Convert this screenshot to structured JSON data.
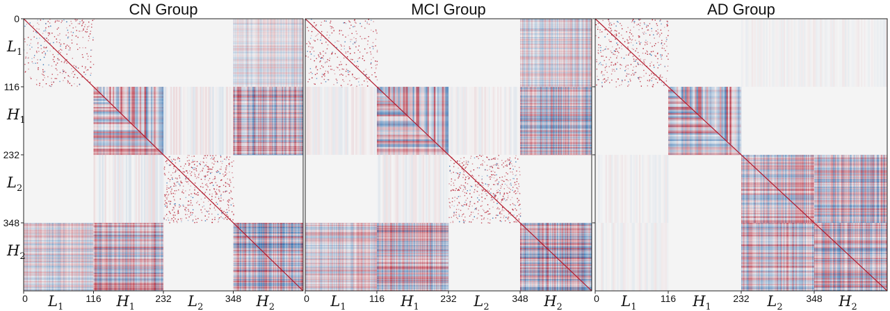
{
  "chart_data": [
    {
      "type": "heatmap",
      "title": "CN Group",
      "tick_positions": [
        0,
        116,
        232,
        348
      ],
      "tick_labels": [
        "0",
        "116",
        "232",
        "348"
      ],
      "block_labels": [
        {
          "letter": "L",
          "sub": "1"
        },
        {
          "letter": "H",
          "sub": "1"
        },
        {
          "letter": "L",
          "sub": "2"
        },
        {
          "letter": "H",
          "sub": "2"
        }
      ],
      "size": 464,
      "blocks": [
        {
          "row": 0,
          "col": 0,
          "pattern": "sparse",
          "strength": 0.45
        },
        {
          "row": 0,
          "col": 3,
          "pattern": "stripes",
          "strength": 0.4
        },
        {
          "row": 1,
          "col": 1,
          "pattern": "dense",
          "strength": 0.9
        },
        {
          "row": 1,
          "col": 2,
          "pattern": "faint",
          "strength": 0.2
        },
        {
          "row": 1,
          "col": 3,
          "pattern": "stripes",
          "strength": 0.9
        },
        {
          "row": 2,
          "col": 1,
          "pattern": "faint",
          "strength": 0.2
        },
        {
          "row": 2,
          "col": 2,
          "pattern": "sparse",
          "strength": 0.75
        },
        {
          "row": 3,
          "col": 0,
          "pattern": "stripes",
          "strength": 0.55
        },
        {
          "row": 3,
          "col": 1,
          "pattern": "stripes",
          "strength": 0.9
        },
        {
          "row": 3,
          "col": 3,
          "pattern": "stripes",
          "strength": 1.0
        }
      ]
    },
    {
      "type": "heatmap",
      "title": "MCI Group",
      "tick_positions": [
        0,
        116,
        232,
        348
      ],
      "tick_labels": [
        "0",
        "116",
        "232",
        "348"
      ],
      "block_labels": [
        {
          "letter": "L",
          "sub": "1"
        },
        {
          "letter": "H",
          "sub": "1"
        },
        {
          "letter": "L",
          "sub": "2"
        },
        {
          "letter": "H",
          "sub": "2"
        }
      ],
      "size": 464,
      "blocks": [
        {
          "row": 0,
          "col": 0,
          "pattern": "sparse",
          "strength": 0.45
        },
        {
          "row": 0,
          "col": 3,
          "pattern": "stripes",
          "strength": 0.55
        },
        {
          "row": 1,
          "col": 0,
          "pattern": "faint",
          "strength": 0.15
        },
        {
          "row": 1,
          "col": 1,
          "pattern": "dense",
          "strength": 0.9
        },
        {
          "row": 1,
          "col": 2,
          "pattern": "faint",
          "strength": 0.15
        },
        {
          "row": 1,
          "col": 3,
          "pattern": "stripes",
          "strength": 0.85
        },
        {
          "row": 2,
          "col": 1,
          "pattern": "faint",
          "strength": 0.15
        },
        {
          "row": 2,
          "col": 2,
          "pattern": "sparse",
          "strength": 0.75
        },
        {
          "row": 3,
          "col": 0,
          "pattern": "stripes",
          "strength": 0.6
        },
        {
          "row": 3,
          "col": 1,
          "pattern": "stripes",
          "strength": 0.9
        },
        {
          "row": 3,
          "col": 3,
          "pattern": "stripes",
          "strength": 1.0
        }
      ]
    },
    {
      "type": "heatmap",
      "title": "AD Group",
      "tick_positions": [
        0,
        116,
        232,
        348
      ],
      "tick_labels": [
        "0",
        "116",
        "232",
        "348"
      ],
      "block_labels": [
        {
          "letter": "L",
          "sub": "1"
        },
        {
          "letter": "H",
          "sub": "1"
        },
        {
          "letter": "L",
          "sub": "2"
        },
        {
          "letter": "H",
          "sub": "2"
        }
      ],
      "size": 464,
      "blocks": [
        {
          "row": 0,
          "col": 0,
          "pattern": "sparse",
          "strength": 0.6
        },
        {
          "row": 0,
          "col": 2,
          "pattern": "faint",
          "strength": 0.1
        },
        {
          "row": 0,
          "col": 3,
          "pattern": "faint",
          "strength": 0.1
        },
        {
          "row": 1,
          "col": 1,
          "pattern": "dense",
          "strength": 0.95
        },
        {
          "row": 2,
          "col": 0,
          "pattern": "faint",
          "strength": 0.12
        },
        {
          "row": 3,
          "col": 0,
          "pattern": "faint",
          "strength": 0.12
        },
        {
          "row": 2,
          "col": 2,
          "pattern": "stripes",
          "strength": 0.75
        },
        {
          "row": 2,
          "col": 3,
          "pattern": "stripes",
          "strength": 0.85
        },
        {
          "row": 3,
          "col": 2,
          "pattern": "stripes",
          "strength": 0.85
        },
        {
          "row": 3,
          "col": 3,
          "pattern": "stripes",
          "strength": 0.9
        }
      ]
    }
  ],
  "colors": {
    "background": "#f4f4f4",
    "positive": "#b2182b",
    "positive_light": "#f4a582",
    "negative": "#2166ac",
    "negative_light": "#92c5de",
    "diagonal": "#b2182b"
  }
}
